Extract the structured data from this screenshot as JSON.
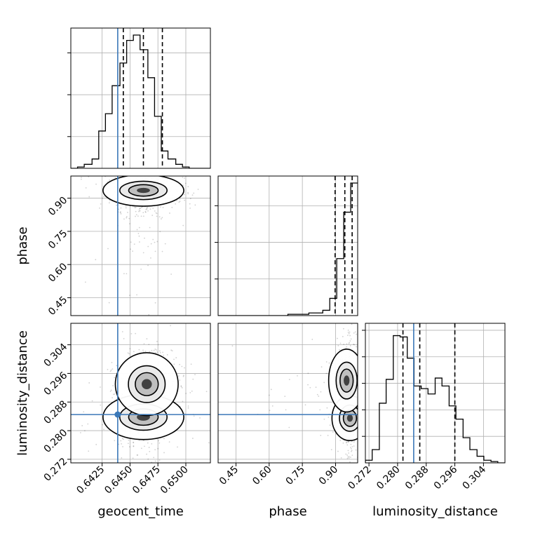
{
  "chart_data": {
    "type": "corner",
    "parameters": [
      "geocent_time",
      "phase",
      "luminosity_distance"
    ],
    "truth": {
      "geocent_time": 0.6439,
      "phase": null,
      "luminosity_distance": 0.2845
    },
    "colors": {
      "truth": "#3b78b8",
      "hist": "#000000",
      "grid": "#b0b0b0",
      "quantile": "#000000"
    },
    "marginals": [
      {
        "param": "geocent_time",
        "xlim": [
          0.6397,
          0.6522
        ],
        "quantiles": [
          0.6444,
          0.6462,
          0.6479
        ],
        "yticks_unlabeled": [
          0.25,
          0.58,
          0.91
        ],
        "bins": [
          0.6397,
          0.6403,
          0.6409,
          0.6416,
          0.6422,
          0.6428,
          0.6434,
          0.6441,
          0.6447,
          0.6453,
          0.6459,
          0.6466,
          0.6472,
          0.6478,
          0.6484,
          0.6491,
          0.6497,
          0.6503,
          0.6509,
          0.6516,
          0.6522
        ],
        "counts": [
          0.0,
          0.01,
          0.03,
          0.07,
          0.28,
          0.41,
          0.62,
          0.79,
          0.96,
          1.0,
          0.89,
          0.68,
          0.39,
          0.13,
          0.07,
          0.03,
          0.01,
          0.0,
          0.0,
          0.0
        ]
      },
      {
        "param": "phase",
        "xlim": [
          0.3693,
          1.0
        ],
        "quantiles": [
          0.898,
          0.942,
          0.975
        ],
        "yticks_unlabeled": [
          0.29,
          0.58,
          0.87
        ],
        "bins": [
          0.3693,
          0.4008,
          0.4324,
          0.4639,
          0.4954,
          0.527,
          0.5585,
          0.59,
          0.6216,
          0.6531,
          0.6846,
          0.7162,
          0.7477,
          0.7793,
          0.8108,
          0.8423,
          0.8739,
          0.9054,
          0.9369,
          0.9685,
          1.0
        ],
        "counts": [
          0.0,
          0.0,
          0.0,
          0.0,
          0.0,
          0.0,
          0.0,
          0.0,
          0.0,
          0.0,
          0.01,
          0.01,
          0.01,
          0.02,
          0.02,
          0.04,
          0.13,
          0.43,
          0.78,
          1.0
        ]
      },
      {
        "param": "luminosity_distance",
        "xlim": [
          0.271,
          0.31
        ],
        "quantiles": [
          0.2815,
          0.2862,
          0.296
        ],
        "yticks_unlabeled": [
          0.21,
          0.42,
          0.63,
          0.84,
          1.05
        ],
        "bins": [
          0.271,
          0.2729,
          0.2749,
          0.2768,
          0.2788,
          0.2807,
          0.2827,
          0.2846,
          0.2866,
          0.2885,
          0.2905,
          0.2924,
          0.2944,
          0.2963,
          0.2983,
          0.3002,
          0.3022,
          0.3041,
          0.3061,
          0.308,
          0.31
        ],
        "counts": [
          0.02,
          0.1,
          0.45,
          0.63,
          0.96,
          0.95,
          0.79,
          0.58,
          0.56,
          0.52,
          0.64,
          0.58,
          0.43,
          0.33,
          0.19,
          0.1,
          0.05,
          0.02,
          0.01,
          0.0
        ]
      }
    ],
    "joint": [
      {
        "x": "geocent_time",
        "y": "phase",
        "xlim": [
          0.6397,
          0.6522
        ],
        "ylim": [
          0.3693,
          1.0
        ],
        "mode": [
          0.6462,
          0.935
        ],
        "spread": [
          0.00115,
          0.035
        ],
        "scatter": {
          "x_range": [
            0.6405,
            0.6515
          ],
          "y_range": [
            0.42,
            1.0
          ],
          "density": "heavy near mode, sparse tail to low phase"
        }
      },
      {
        "x": "geocent_time",
        "y": "luminosity_distance",
        "xlim": [
          0.6397,
          0.6522
        ],
        "ylim": [
          0.271,
          0.31
        ],
        "modes": [
          [
            0.6462,
            0.2838
          ],
          [
            0.6465,
            0.293
          ]
        ],
        "scatter": {
          "x_range": [
            0.6405,
            0.6515
          ],
          "y_range": [
            0.272,
            0.308
          ]
        }
      },
      {
        "x": "phase",
        "y": "luminosity_distance",
        "xlim": [
          0.3693,
          1.0
        ],
        "ylim": [
          0.271,
          0.31
        ],
        "modes": [
          [
            0.965,
            0.2835
          ],
          [
            0.95,
            0.294
          ]
        ],
        "scatter": {
          "x_range": [
            0.4,
            1.0
          ],
          "y_range": [
            0.272,
            0.308
          ]
        }
      }
    ],
    "ticks": {
      "geocent_time": [
        "0.6425",
        "0.6450",
        "0.6475",
        "0.6500"
      ],
      "phase": [
        "0.45",
        "0.60",
        "0.75",
        "0.90"
      ],
      "luminosity_distance": [
        "0.272",
        "0.280",
        "0.288",
        "0.296",
        "0.304"
      ]
    },
    "grid": true
  }
}
